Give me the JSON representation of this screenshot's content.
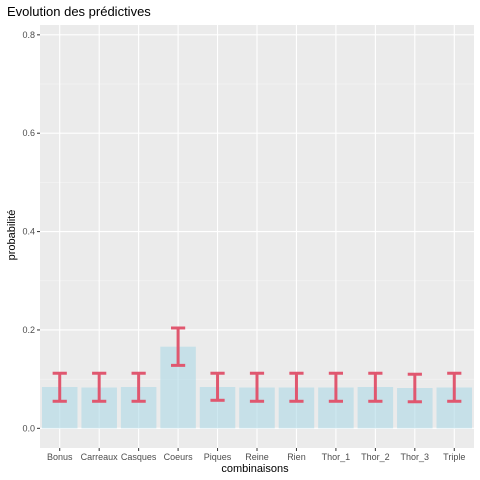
{
  "chart_data": {
    "type": "bar",
    "title": "Evolution des prédictives",
    "xlabel": "combinaisons",
    "ylabel": "probabilité",
    "categories": [
      "Bonus",
      "Carreaux",
      "Casques",
      "Coeurs",
      "Piques",
      "Reine",
      "Rien",
      "Thor_1",
      "Thor_2",
      "Thor_3",
      "Triple"
    ],
    "values": [
      0.084,
      0.083,
      0.084,
      0.166,
      0.084,
      0.083,
      0.083,
      0.083,
      0.084,
      0.082,
      0.083
    ],
    "error_low": [
      0.055,
      0.055,
      0.055,
      0.128,
      0.057,
      0.055,
      0.055,
      0.055,
      0.055,
      0.054,
      0.055
    ],
    "error_high": [
      0.112,
      0.112,
      0.112,
      0.204,
      0.112,
      0.112,
      0.112,
      0.112,
      0.112,
      0.11,
      0.112
    ],
    "ylim": [
      -0.04,
      0.82
    ],
    "yticks": [
      0.0,
      0.2,
      0.4,
      0.6,
      0.8
    ],
    "ytick_labels": [
      "0.0",
      "0.2",
      "0.4",
      "0.6",
      "0.8"
    ],
    "grid": true,
    "legend": "none",
    "colors": {
      "bar": "#add8e6",
      "error_bar": "#e0576f",
      "panel": "#ebebeb",
      "grid_major": "#ffffff",
      "grid_minor": "#f5f5f5"
    }
  }
}
